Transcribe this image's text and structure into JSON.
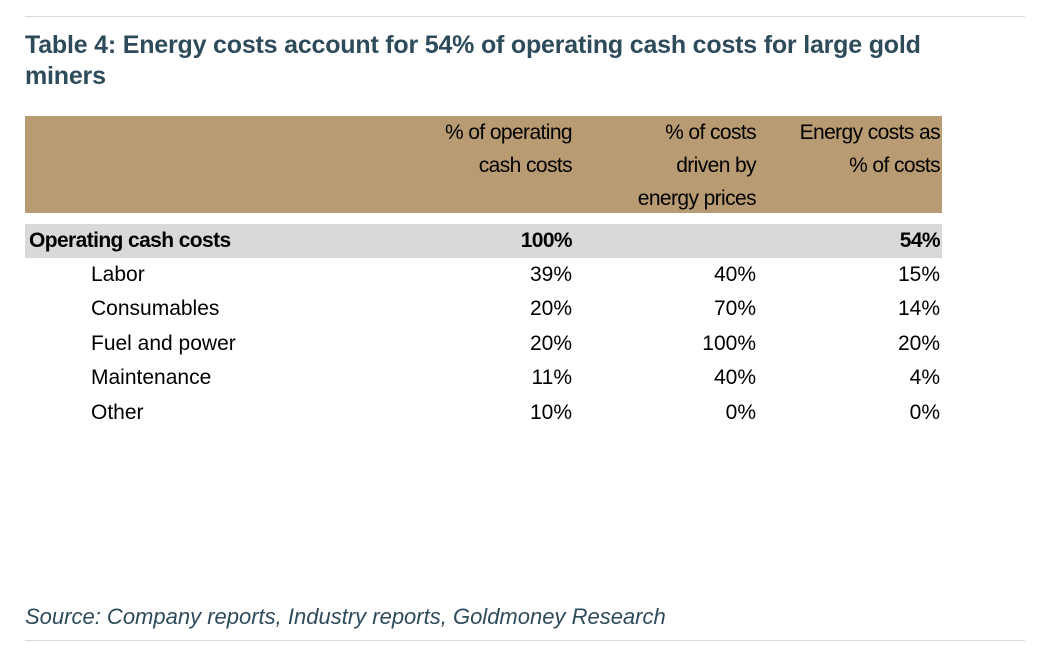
{
  "title": "Table 4: Energy costs account for 54% of operating cash costs for large gold miners",
  "table": {
    "headers": [
      [
        "% of operating",
        "cash costs"
      ],
      [
        "% of costs",
        "driven by",
        "energy prices"
      ],
      [
        "Energy costs as",
        "% of costs"
      ]
    ],
    "total_row": {
      "label": "Operating cash costs",
      "values": [
        "100%",
        "",
        "54%"
      ]
    },
    "rows": [
      {
        "label": "Labor",
        "values": [
          "39%",
          "40%",
          "15%"
        ]
      },
      {
        "label": "Consumables",
        "values": [
          "20%",
          "70%",
          "14%"
        ]
      },
      {
        "label": "Fuel and power",
        "values": [
          "20%",
          "100%",
          "20%"
        ]
      },
      {
        "label": "Maintenance",
        "values": [
          "11%",
          "40%",
          "4%"
        ]
      },
      {
        "label": "Other",
        "values": [
          "10%",
          "0%",
          "0%"
        ]
      }
    ]
  },
  "source": "Source: Company reports, Industry reports, Goldmoney Research",
  "colors": {
    "title": "#2e4b5c",
    "header_bg": "#b89b72",
    "total_row_bg": "#d9d9d9"
  }
}
